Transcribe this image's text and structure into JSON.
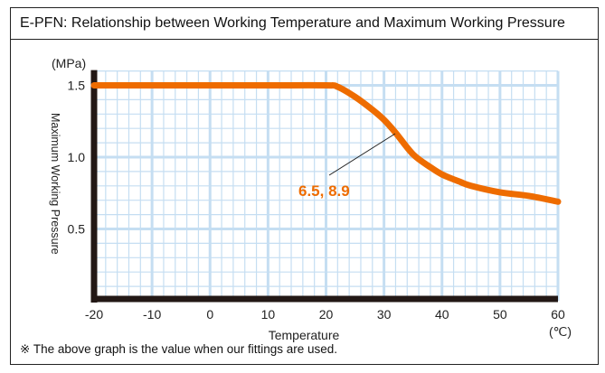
{
  "title": "E-PFN: Relationship between Working Temperature and Maximum Working Pressure",
  "note": "※ The above graph is the value when our fittings are used.",
  "chart_data": {
    "type": "line",
    "title": "E-PFN: Relationship between Working Temperature and Maximum Working Pressure",
    "xlabel": "Temperature",
    "xunit": "(℃)",
    "ylabel": "Maximum Working Pressure",
    "yunit": "(MPa)",
    "xlim": [
      -20,
      60
    ],
    "ylim": [
      0,
      1.6
    ],
    "xticks": [
      "-20",
      "-10",
      "0",
      "10",
      "20",
      "30",
      "40",
      "50",
      "60"
    ],
    "yticks": [
      "0.5",
      "1.0",
      "1.5"
    ],
    "grid": true,
    "color": "#ee6c00",
    "annotation": "6.5, 8.9",
    "series": [
      {
        "x": [
          -20,
          -10,
          0,
          10,
          20,
          22,
          25,
          28,
          30,
          32,
          35,
          38,
          40,
          43,
          45,
          50,
          55,
          60
        ],
        "y": [
          1.5,
          1.5,
          1.5,
          1.5,
          1.5,
          1.49,
          1.42,
          1.33,
          1.26,
          1.17,
          1.02,
          0.93,
          0.88,
          0.83,
          0.8,
          0.755,
          0.73,
          0.69
        ]
      }
    ]
  }
}
